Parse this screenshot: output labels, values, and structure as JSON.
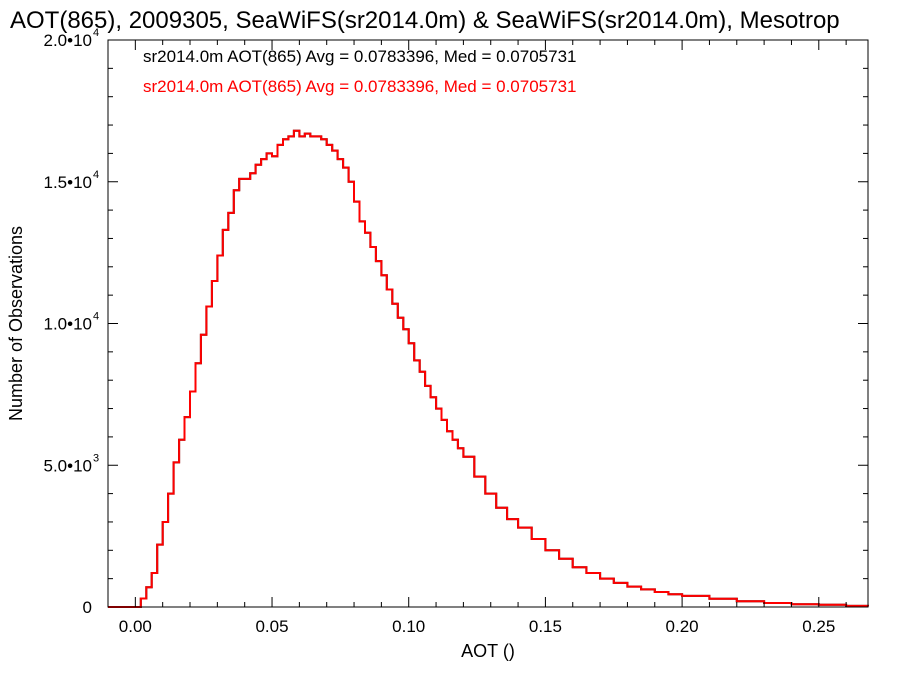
{
  "chart_data": {
    "type": "line",
    "title": "AOT(865), 2009305, SeaWiFS(sr2014.0m) & SeaWiFS(sr2014.0m), Mesotrop",
    "xlabel": "AOT ()",
    "ylabel": "Number of Observations",
    "xlim": [
      -0.01,
      0.268
    ],
    "ylim": [
      0,
      20000
    ],
    "xticks": [
      {
        "value": 0.0,
        "label": "0.00"
      },
      {
        "value": 0.05,
        "label": "0.05"
      },
      {
        "value": 0.1,
        "label": "0.10"
      },
      {
        "value": 0.15,
        "label": "0.15"
      },
      {
        "value": 0.2,
        "label": "0.20"
      },
      {
        "value": 0.25,
        "label": "0.25"
      }
    ],
    "yticks": [
      {
        "value": 0,
        "mantissa": "0",
        "exp": ""
      },
      {
        "value": 5000,
        "mantissa": "5.0•10",
        "exp": "3"
      },
      {
        "value": 10000,
        "mantissa": "1.0•10",
        "exp": "4"
      },
      {
        "value": 15000,
        "mantissa": "1.5•10",
        "exp": "4"
      },
      {
        "value": 20000,
        "mantissa": "2.0•10",
        "exp": "4"
      }
    ],
    "annotations": [
      {
        "text": "sr2014.0m AOT(865) Avg = 0.0783396, Med = 0.0705731",
        "color": "#000000"
      },
      {
        "text": "sr2014.0m AOT(865) Avg = 0.0783396, Med = 0.0705731",
        "color": "#ff0000"
      }
    ],
    "series": [
      {
        "color": "#000000",
        "x": [
          -0.01,
          0.0,
          0.002,
          0.004,
          0.006,
          0.008,
          0.01,
          0.012,
          0.014,
          0.016,
          0.018,
          0.02,
          0.022,
          0.024,
          0.026,
          0.028,
          0.03,
          0.032,
          0.034,
          0.036,
          0.038,
          0.04,
          0.042,
          0.044,
          0.046,
          0.048,
          0.05,
          0.052,
          0.054,
          0.056,
          0.058,
          0.06,
          0.062,
          0.064,
          0.066,
          0.068,
          0.07,
          0.072,
          0.074,
          0.076,
          0.078,
          0.08,
          0.082,
          0.084,
          0.086,
          0.088,
          0.09,
          0.092,
          0.094,
          0.096,
          0.098,
          0.1,
          0.102,
          0.104,
          0.106,
          0.108,
          0.11,
          0.112,
          0.114,
          0.116,
          0.118,
          0.12,
          0.124,
          0.128,
          0.132,
          0.136,
          0.14,
          0.145,
          0.15,
          0.155,
          0.16,
          0.165,
          0.17,
          0.175,
          0.18,
          0.185,
          0.19,
          0.195,
          0.2,
          0.21,
          0.22,
          0.23,
          0.24,
          0.25,
          0.26,
          0.268
        ],
        "y": [
          0,
          0,
          300,
          700,
          1200,
          2200,
          3000,
          4000,
          5100,
          5900,
          6700,
          7600,
          8600,
          9600,
          10600,
          11500,
          12400,
          13300,
          13900,
          14700,
          15100,
          15100,
          15300,
          15600,
          15800,
          16000,
          15900,
          16300,
          16500,
          16600,
          16800,
          16600,
          16700,
          16600,
          16600,
          16500,
          16300,
          16100,
          15800,
          15500,
          15000,
          14300,
          13600,
          13200,
          12700,
          12200,
          11700,
          11200,
          10700,
          10200,
          9800,
          9300,
          8700,
          8300,
          7800,
          7400,
          7000,
          6600,
          6200,
          5900,
          5600,
          5300,
          4600,
          4000,
          3500,
          3100,
          2800,
          2400,
          2000,
          1700,
          1400,
          1200,
          1000,
          850,
          720,
          620,
          530,
          450,
          390,
          290,
          200,
          140,
          100,
          80,
          40,
          20
        ]
      },
      {
        "color": "#ff0000",
        "x": [
          -0.01,
          0.0,
          0.002,
          0.004,
          0.006,
          0.008,
          0.01,
          0.012,
          0.014,
          0.016,
          0.018,
          0.02,
          0.022,
          0.024,
          0.026,
          0.028,
          0.03,
          0.032,
          0.034,
          0.036,
          0.038,
          0.04,
          0.042,
          0.044,
          0.046,
          0.048,
          0.05,
          0.052,
          0.054,
          0.056,
          0.058,
          0.06,
          0.062,
          0.064,
          0.066,
          0.068,
          0.07,
          0.072,
          0.074,
          0.076,
          0.078,
          0.08,
          0.082,
          0.084,
          0.086,
          0.088,
          0.09,
          0.092,
          0.094,
          0.096,
          0.098,
          0.1,
          0.102,
          0.104,
          0.106,
          0.108,
          0.11,
          0.112,
          0.114,
          0.116,
          0.118,
          0.12,
          0.124,
          0.128,
          0.132,
          0.136,
          0.14,
          0.145,
          0.15,
          0.155,
          0.16,
          0.165,
          0.17,
          0.175,
          0.18,
          0.185,
          0.19,
          0.195,
          0.2,
          0.21,
          0.22,
          0.23,
          0.24,
          0.25,
          0.26,
          0.268
        ],
        "y": [
          0,
          0,
          300,
          700,
          1200,
          2200,
          3000,
          4000,
          5100,
          5900,
          6700,
          7600,
          8600,
          9600,
          10600,
          11500,
          12400,
          13300,
          13900,
          14700,
          15100,
          15100,
          15300,
          15600,
          15800,
          16000,
          15900,
          16300,
          16500,
          16600,
          16800,
          16600,
          16700,
          16600,
          16600,
          16500,
          16300,
          16100,
          15800,
          15500,
          15000,
          14300,
          13600,
          13200,
          12700,
          12200,
          11700,
          11200,
          10700,
          10200,
          9800,
          9300,
          8700,
          8300,
          7800,
          7400,
          7000,
          6600,
          6200,
          5900,
          5600,
          5300,
          4600,
          4000,
          3500,
          3100,
          2800,
          2400,
          2000,
          1700,
          1400,
          1200,
          1000,
          850,
          720,
          620,
          530,
          450,
          390,
          290,
          200,
          140,
          100,
          80,
          40,
          20
        ]
      }
    ]
  }
}
